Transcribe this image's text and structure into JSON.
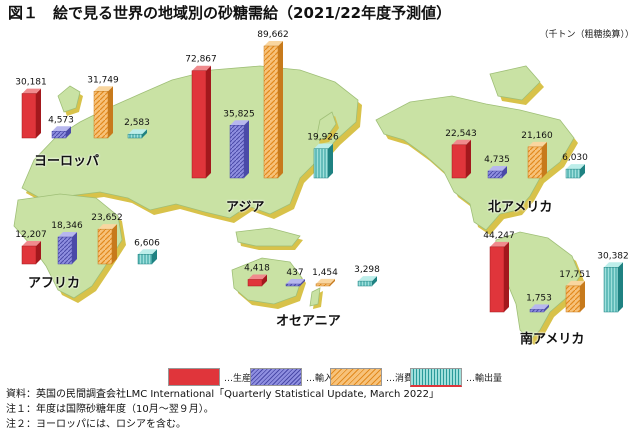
{
  "title": "図１　絵で見る世界の地域別の砂糖需給（2021/22年度予測値）",
  "unit": "（千トン（粗糖換算））",
  "colors": {
    "production": "#e0353b",
    "import": "#7b7bd0",
    "consumption": "#f2a64a",
    "export": "#3fb0b0",
    "land": "#c9e2a4",
    "shadow": "#d8c24a"
  },
  "legend": [
    {
      "key": "production",
      "label": "…生産量"
    },
    {
      "key": "import",
      "label": "…輸入量"
    },
    {
      "key": "consumption",
      "label": "…消費量"
    },
    {
      "key": "export",
      "label": "…輸出量"
    }
  ],
  "chart_data": {
    "type": "bar",
    "title": "図１　絵で見る世界の地域別の砂糖需給（2021/22年度予測値）",
    "ylabel": "千トン（粗糖換算）",
    "series_names": [
      "生産量",
      "輸入量",
      "消費量",
      "輸出量"
    ],
    "regions": [
      {
        "name": "ヨーロッパ",
        "values": [
          30181,
          4573,
          31749,
          2583
        ]
      },
      {
        "name": "アジア",
        "values": [
          72867,
          35825,
          89662,
          19926
        ]
      },
      {
        "name": "アフリカ",
        "values": [
          12207,
          18346,
          23652,
          6606
        ]
      },
      {
        "name": "オセアニア",
        "values": [
          4418,
          437,
          1454,
          3298
        ]
      },
      {
        "name": "北アメリカ",
        "values": [
          22543,
          4735,
          21160,
          6030
        ]
      },
      {
        "name": "南アメリカ",
        "values": [
          44247,
          1753,
          17751,
          30382
        ]
      }
    ]
  },
  "notes": [
    "資料：英国の民間調査会社LMC International「Quarterly Statistical Update, March 2022」",
    "注１：年度は国際砂糖年度（10月～翌９月）。",
    "注２：ヨーロッパには、ロシアを含む。"
  ]
}
